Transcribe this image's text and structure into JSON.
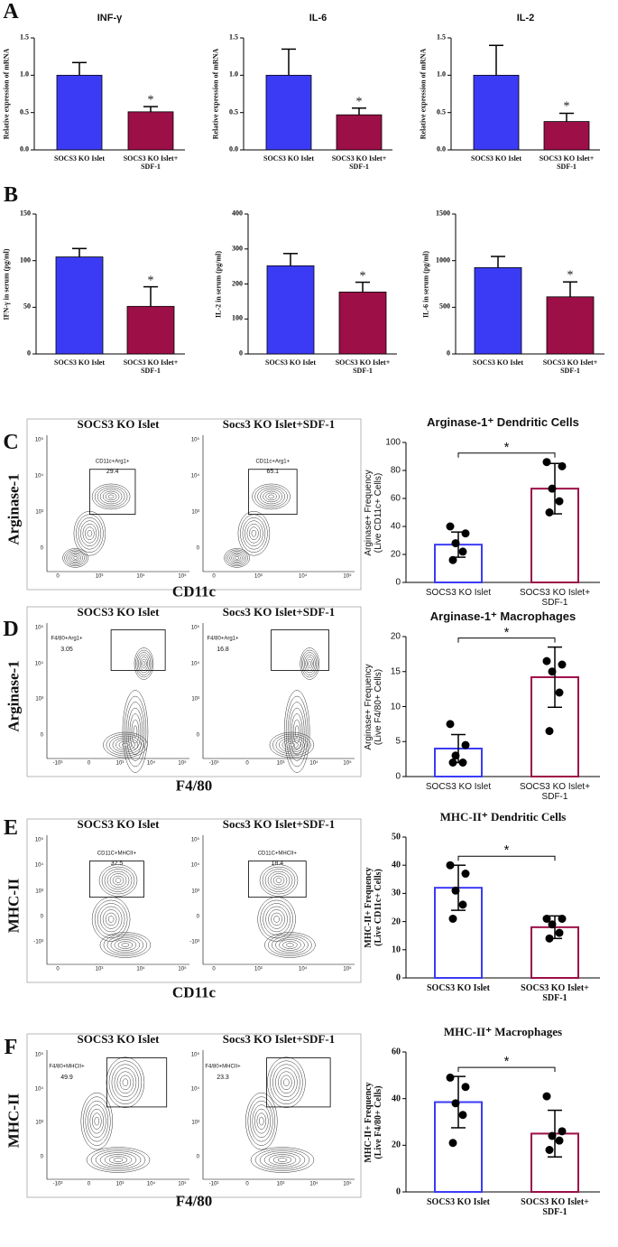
{
  "panel_letters": [
    "A",
    "B",
    "C",
    "D",
    "E",
    "F"
  ],
  "chart_data": [
    {
      "type": "bar",
      "title": "INF-γ",
      "ylabel": "Relative expression of mRNA",
      "categories": [
        "SOCS3 KO Islet",
        "SOCS3 KO Islet+\nSDF-1"
      ],
      "values": [
        1.0,
        0.51
      ],
      "errors": [
        0.17,
        0.07
      ],
      "colors": [
        "#3b3bf5",
        "#9c0f47"
      ],
      "filled": true,
      "error_direction": "up",
      "ylim": [
        0,
        1.5
      ],
      "yticks": [
        {
          "value": 0,
          "label": "0.0"
        },
        0.5,
        {
          "value": 1,
          "label": "1.0"
        },
        1.5
      ],
      "significance": "*",
      "bracket": false
    },
    {
      "type": "bar",
      "title": "IL-6",
      "ylabel": "Relative expression of mRNA",
      "categories": [
        "SOCS3 KO Islet",
        "SOCS3 KO Islet+\nSDF-1"
      ],
      "values": [
        1.0,
        0.47
      ],
      "errors": [
        0.35,
        0.09
      ],
      "colors": [
        "#3b3bf5",
        "#9c0f47"
      ],
      "filled": true,
      "error_direction": "up",
      "ylim": [
        0,
        1.5
      ],
      "yticks": [
        {
          "value": 0,
          "label": "0.0"
        },
        0.5,
        {
          "value": 1,
          "label": "1.0"
        },
        1.5
      ],
      "significance": "*",
      "bracket": false
    },
    {
      "type": "bar",
      "title": "IL-2",
      "ylabel": "Relative expression of mRNA",
      "categories": [
        "SOCS3 KO Islet",
        "SOCS3 KO Islet+\nSDF-1"
      ],
      "values": [
        1.0,
        0.38
      ],
      "errors": [
        0.4,
        0.11
      ],
      "colors": [
        "#3b3bf5",
        "#9c0f47"
      ],
      "filled": true,
      "error_direction": "up",
      "ylim": [
        0,
        1.5
      ],
      "yticks": [
        {
          "value": 0,
          "label": "0.0"
        },
        0.5,
        {
          "value": 1,
          "label": "1.0"
        },
        1.5
      ],
      "significance": "*",
      "bracket": false
    },
    {
      "type": "bar",
      "ylabel": "IFN-γ in serum (pg/ml)",
      "categories": [
        "SOCS3 KO Islet",
        "SOCS3 KO Islet+\nSDF-1"
      ],
      "values": [
        104,
        51
      ],
      "errors": [
        9,
        21
      ],
      "colors": [
        "#3b3bf5",
        "#9c0f47"
      ],
      "filled": true,
      "error_direction": "up",
      "ylim": [
        0,
        150
      ],
      "yticks": [
        0,
        50,
        100,
        150
      ],
      "significance": "*",
      "bracket": false
    },
    {
      "type": "bar",
      "ylabel": "IL-2 in serum (pg/ml)",
      "categories": [
        "SOCS3 KO Islet",
        "SOCS3 KO Islet+\nSDF-1"
      ],
      "values": [
        252,
        177
      ],
      "errors": [
        35,
        28
      ],
      "colors": [
        "#3b3bf5",
        "#9c0f47"
      ],
      "filled": true,
      "error_direction": "up",
      "ylim": [
        0,
        400
      ],
      "yticks": [
        0,
        100,
        200,
        300,
        400
      ],
      "significance": "*",
      "bracket": false
    },
    {
      "type": "bar",
      "ylabel": "IL-6 in serum (pg/ml)",
      "categories": [
        "SOCS3 KO Islet",
        "SOCS3 KO Islet+\nSDF-1"
      ],
      "values": [
        925,
        612
      ],
      "errors": [
        120,
        160
      ],
      "colors": [
        "#3b3bf5",
        "#9c0f47"
      ],
      "filled": true,
      "error_direction": "up",
      "ylim": [
        0,
        1500
      ],
      "yticks": [
        0,
        500,
        1000,
        1500
      ],
      "significance": "*",
      "bracket": false
    },
    {
      "type": "bar",
      "title": "Arginase-1⁺ Dendritic Cells",
      "ylabel": "Arginase+ Frequency\n(Live CD11c+ Cells)",
      "categories": [
        "SOCS3 KO Islet",
        "SOCS3 KO Islet+\nSDF-1"
      ],
      "values": [
        27,
        67
      ],
      "errors": [
        9,
        18
      ],
      "points": [
        [
          40,
          35,
          28,
          22,
          16
        ],
        [
          86,
          83,
          67,
          58,
          50
        ]
      ],
      "colors": [
        "#3b3bf5",
        "#9c0f47"
      ],
      "filled": false,
      "error_direction": "both",
      "ylim": [
        0,
        100
      ],
      "yticks": [
        0,
        20,
        40,
        60,
        80,
        100
      ],
      "significance": "*",
      "bracket": true
    },
    {
      "type": "bar",
      "title": "Arginase-1⁺ Macrophages",
      "ylabel": "Arginase+ Frequency\n(Live F4/80+ Cells)",
      "categories": [
        "SOCS3 KO Islet",
        "SOCS3 KO Islet+\nSDF-1"
      ],
      "values": [
        4.0,
        14.2
      ],
      "errors": [
        2.0,
        4.3
      ],
      "points": [
        [
          7.5,
          4.5,
          3.0,
          2.0,
          2.0
        ],
        [
          16.5,
          16.0,
          15.0,
          12.0,
          6.5
        ]
      ],
      "colors": [
        "#3b3bf5",
        "#9c0f47"
      ],
      "filled": false,
      "error_direction": "both",
      "ylim": [
        0,
        20
      ],
      "yticks": [
        0,
        5,
        10,
        15,
        20
      ],
      "significance": "*",
      "bracket": true
    },
    {
      "type": "bar",
      "title": "MHC-II⁺ Dendritic Cells",
      "ylabel": "MHC-II+ Frequency\n(Live CD11c+ Cells)",
      "categories": [
        "SOCS3 KO Islet",
        "SOCS3 KO Islet+\nSDF-1"
      ],
      "values": [
        32,
        18
      ],
      "errors": [
        8,
        4
      ],
      "points": [
        [
          40,
          37,
          31,
          26,
          21
        ],
        [
          21,
          21,
          19,
          16,
          14
        ]
      ],
      "colors": [
        "#3b3bf5",
        "#9c0f47"
      ],
      "filled": false,
      "error_direction": "both",
      "ylim": [
        0,
        50
      ],
      "yticks": [
        0,
        10,
        20,
        30,
        40,
        50
      ],
      "significance": "*",
      "bracket": true
    },
    {
      "type": "bar",
      "title": "MHC-II⁺ Macrophages",
      "ylabel": "MHC-II+ Frequency\n(Live F4/80+ Cells)",
      "categories": [
        "SOCS3 KO Islet",
        "SOCS3 KO Islet+\nSDF-1"
      ],
      "values": [
        38.5,
        25
      ],
      "errors": [
        11,
        10
      ],
      "points": [
        [
          49,
          45,
          38,
          33,
          21
        ],
        [
          41,
          26,
          24,
          22,
          18
        ]
      ],
      "colors": [
        "#3b3bf5",
        "#9c0f47"
      ],
      "filled": false,
      "error_direction": "both",
      "ylim": [
        0,
        60
      ],
      "yticks": [
        0,
        20,
        40,
        60
      ],
      "significance": "*",
      "bracket": true
    }
  ],
  "flow_panels": [
    {
      "ylabel": "Arginase-1",
      "xlabel": "CD11c",
      "yticks": [
        "10⁵",
        "10⁴",
        "10³",
        "0"
      ],
      "xticks": [
        "0",
        "10³",
        "10⁴",
        "10⁵"
      ],
      "plots": [
        {
          "title": "SOCS3 KO Islet",
          "gate_label": "CD11c+Arg1+",
          "gate_value": 29.4
        },
        {
          "title": "Socs3 KO Islet+SDF-1",
          "gate_label": "CD11c+Arg1+",
          "gate_value": 65.1
        }
      ]
    },
    {
      "ylabel": "Arginase-1",
      "xlabel": "F4/80",
      "yticks": [
        "10⁵",
        "10⁴",
        "10³",
        "0"
      ],
      "xticks": [
        "-10³",
        "0",
        "10³",
        "10⁴",
        "10⁵"
      ],
      "plots": [
        {
          "title": "SOCS3 KO Islet",
          "gate_label": "F4/80+Arg1+",
          "gate_value": 3.05
        },
        {
          "title": "Socs3 KO Islet+SDF-1",
          "gate_label": "F4/80+Arg1+",
          "gate_value": 16.8
        }
      ]
    },
    {
      "ylabel": "MHC-II",
      "xlabel": "CD11c",
      "yticks": [
        "10⁵",
        "10⁴",
        "10³",
        "0",
        "-10³"
      ],
      "xticks": [
        "0",
        "10³",
        "10⁴",
        "10⁵"
      ],
      "plots": [
        {
          "title": "SOCS3 KO Islet",
          "gate_label": "CD11C+MHCII+",
          "gate_value": 32.5
        },
        {
          "title": "Socs3 KO Islet+SDF-1",
          "gate_label": "CD11C+MHCII+",
          "gate_value": 18.4
        }
      ]
    },
    {
      "ylabel": "MHC-II",
      "xlabel": "F4/80",
      "yticks": [
        "10⁵",
        "10⁴",
        "10³",
        "0"
      ],
      "xticks": [
        "-10³",
        "0",
        "10³",
        "10⁴",
        "10⁵"
      ],
      "plots": [
        {
          "title": "SOCS3 KO Islet",
          "gate_label": "F4/80+MHCII+",
          "gate_value": 49.9
        },
        {
          "title": "Socs3 KO Islet+SDF-1",
          "gate_label": "F4/80+MHCII+",
          "gate_value": 23.3
        }
      ]
    }
  ]
}
